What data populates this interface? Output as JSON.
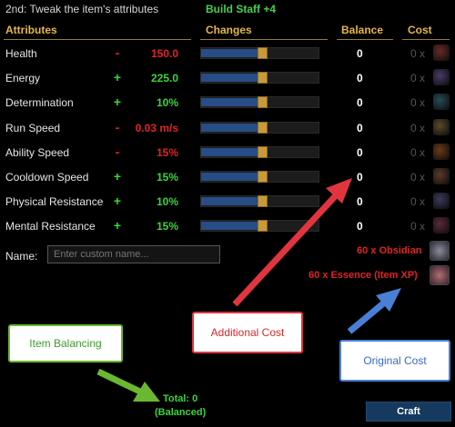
{
  "header": {
    "title": "2nd: Tweak the item's attributes",
    "subtitle": "Build Staff +4",
    "columns": {
      "attributes": "Attributes",
      "changes": "Changes",
      "balance": "Balance",
      "cost": "Cost"
    }
  },
  "rows": [
    {
      "name": "Health",
      "sign": "-",
      "value": "150.0",
      "polarity": "neg",
      "slider_fraction": 0.52,
      "balance": "0",
      "cost": "0 x"
    },
    {
      "name": "Energy",
      "sign": "+",
      "value": "225.0",
      "polarity": "pos",
      "slider_fraction": 0.52,
      "balance": "0",
      "cost": "0 x"
    },
    {
      "name": "Determination",
      "sign": "+",
      "value": "10%",
      "polarity": "pos",
      "slider_fraction": 0.52,
      "balance": "0",
      "cost": "0 x"
    },
    {
      "name": "Run Speed",
      "sign": "-",
      "value": "0.03 m/s",
      "polarity": "neg",
      "slider_fraction": 0.52,
      "balance": "0",
      "cost": "0 x"
    },
    {
      "name": "Ability Speed",
      "sign": "-",
      "value": "15%",
      "polarity": "neg",
      "slider_fraction": 0.52,
      "balance": "0",
      "cost": "0 x"
    },
    {
      "name": "Cooldown Speed",
      "sign": "+",
      "value": "15%",
      "polarity": "pos",
      "slider_fraction": 0.52,
      "balance": "0",
      "cost": "0 x"
    },
    {
      "name": "Physical Resistance",
      "sign": "+",
      "value": "10%",
      "polarity": "pos",
      "slider_fraction": 0.52,
      "balance": "0",
      "cost": "0 x"
    },
    {
      "name": "Mental Resistance",
      "sign": "+",
      "value": "15%",
      "polarity": "pos",
      "slider_fraction": 0.52,
      "balance": "0",
      "cost": "0 x"
    }
  ],
  "name_field": {
    "label": "Name:",
    "placeholder": "Enter custom name..."
  },
  "extra_costs": {
    "obsidian": "60 x Obsidian",
    "essence": "60 x Essence (Item XP)"
  },
  "annotations": {
    "item_balancing": "Item Balancing",
    "additional_cost": "Additional Cost",
    "original_cost": "Original Cost"
  },
  "footer": {
    "total": "Total: 0",
    "balanced": "(Balanced)",
    "craft": "Craft"
  },
  "colors": {
    "accent": "#e8b548",
    "positive": "#3ad43a",
    "negative": "#e02424",
    "green_arrow": "#6ab832",
    "red_arrow": "#e0353f",
    "blue_arrow": "#4a7fd6"
  }
}
